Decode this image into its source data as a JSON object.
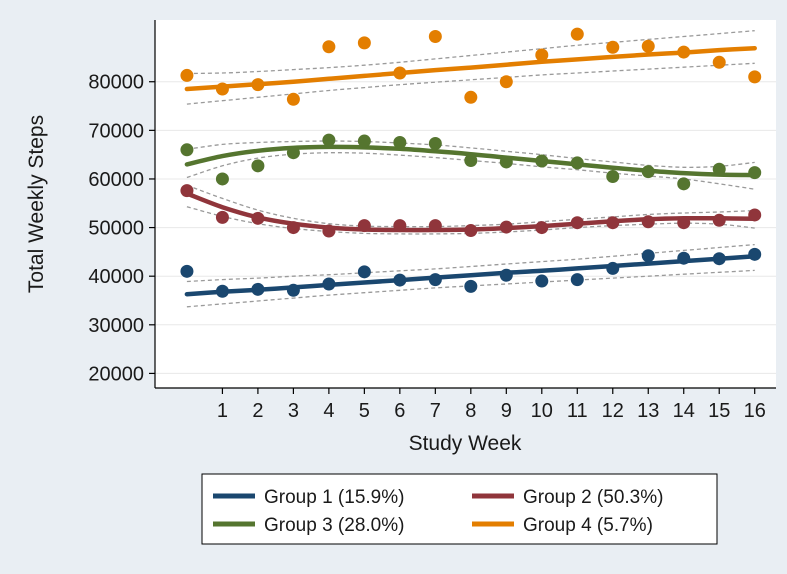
{
  "chart_data": {
    "type": "scatter",
    "title": "",
    "xlabel": "Study Week",
    "ylabel": "Total Weekly Steps",
    "xlim": [
      -0.9,
      16.6
    ],
    "ylim": [
      17000,
      92700
    ],
    "x_ticks": [
      1,
      2,
      3,
      4,
      5,
      6,
      7,
      8,
      9,
      10,
      11,
      12,
      13,
      14,
      15,
      16
    ],
    "y_ticks": [
      20000,
      30000,
      40000,
      50000,
      60000,
      70000,
      80000
    ],
    "legend_position": "bottom",
    "series": [
      {
        "name": "Group 1 (15.9%)",
        "color": "#1a476f",
        "x": [
          0,
          1,
          2,
          3,
          4,
          5,
          6,
          7,
          8,
          9,
          10,
          11,
          12,
          13,
          14,
          15,
          16
        ],
        "points": [
          41000,
          36900,
          37300,
          37100,
          38400,
          40900,
          39200,
          39300,
          37900,
          40200,
          39000,
          39300,
          41600,
          44200,
          43700,
          43600,
          44500
        ],
        "fit": [
          36300,
          36800,
          37200,
          37700,
          38200,
          38700,
          39200,
          39700,
          40200,
          40700,
          41100,
          41600,
          42100,
          42600,
          43100,
          43600,
          44100
        ],
        "ci_lower": [
          33700,
          34300,
          34900,
          35500,
          36100,
          36600,
          37100,
          37600,
          38000,
          38400,
          38800,
          39200,
          39600,
          40000,
          40400,
          40800,
          41200
        ],
        "ci_upper": [
          38900,
          39300,
          39600,
          40000,
          40300,
          40700,
          41100,
          41500,
          42000,
          42500,
          43000,
          43500,
          44100,
          44700,
          45300,
          45900,
          46500
        ]
      },
      {
        "name": "Group 2 (50.3%)",
        "color": "#90353b",
        "x": [
          0,
          1,
          2,
          3,
          4,
          5,
          6,
          7,
          8,
          9,
          10,
          11,
          12,
          13,
          14,
          15,
          16
        ],
        "points": [
          57600,
          52100,
          51900,
          50000,
          49300,
          50400,
          50400,
          50400,
          49400,
          50100,
          50000,
          51000,
          51000,
          51200,
          51000,
          51500,
          52600
        ],
        "fit": [
          57000,
          54200,
          52100,
          50800,
          50000,
          49600,
          49500,
          49500,
          49600,
          49900,
          50300,
          50800,
          51300,
          51700,
          51900,
          51900,
          51800
        ],
        "ci_lower": [
          54300,
          52300,
          50800,
          49800,
          49200,
          48800,
          48700,
          48700,
          48800,
          49100,
          49500,
          50000,
          50400,
          50700,
          50900,
          50700,
          49900
        ],
        "ci_upper": [
          58700,
          56000,
          53600,
          51900,
          50800,
          50300,
          50200,
          50200,
          50400,
          50700,
          51200,
          51700,
          52200,
          52700,
          53000,
          53200,
          53500
        ]
      },
      {
        "name": "Group 3 (28.0%)",
        "color": "#55752f",
        "x": [
          0,
          1,
          2,
          3,
          4,
          5,
          6,
          7,
          8,
          9,
          10,
          11,
          12,
          13,
          14,
          15,
          16
        ],
        "points": [
          66000,
          60000,
          62700,
          65400,
          68000,
          67800,
          67500,
          67300,
          63800,
          63500,
          63700,
          63300,
          60500,
          61500,
          59000,
          62000,
          61300
        ],
        "fit": [
          63000,
          64700,
          65800,
          66400,
          66600,
          66500,
          66200,
          65700,
          65100,
          64400,
          63700,
          63000,
          62300,
          61700,
          61200,
          60900,
          60800
        ],
        "ci_lower": [
          60300,
          62700,
          64300,
          65100,
          65400,
          65300,
          64900,
          64400,
          63800,
          63200,
          62500,
          61900,
          61200,
          60600,
          60000,
          59000,
          57900
        ],
        "ci_upper": [
          66100,
          67100,
          67500,
          67700,
          67800,
          67700,
          67400,
          67000,
          66400,
          65700,
          65000,
          64200,
          63500,
          62800,
          62400,
          62600,
          63400
        ]
      },
      {
        "name": "Group 4 (5.7%)",
        "color": "#e37e00",
        "x": [
          0,
          1,
          2,
          3,
          4,
          5,
          6,
          7,
          8,
          9,
          10,
          11,
          12,
          13,
          14,
          15,
          16
        ],
        "points": [
          81300,
          78500,
          79400,
          76400,
          87200,
          88000,
          81800,
          89300,
          76800,
          80000,
          85500,
          89800,
          87100,
          87300,
          86100,
          84000,
          81000
        ],
        "fit": [
          78500,
          79000,
          79500,
          80000,
          80600,
          81200,
          81800,
          82400,
          82900,
          83500,
          84100,
          84600,
          85100,
          85600,
          86000,
          86500,
          86900
        ],
        "ci_lower": [
          75400,
          76100,
          76800,
          77500,
          78200,
          78800,
          79400,
          79900,
          80400,
          80900,
          81400,
          81800,
          82200,
          82600,
          83000,
          83400,
          83800
        ],
        "ci_upper": [
          81700,
          81800,
          82100,
          82500,
          82900,
          83400,
          84000,
          84700,
          85400,
          86100,
          86800,
          87500,
          88100,
          88700,
          89300,
          89900,
          90500
        ]
      }
    ]
  }
}
